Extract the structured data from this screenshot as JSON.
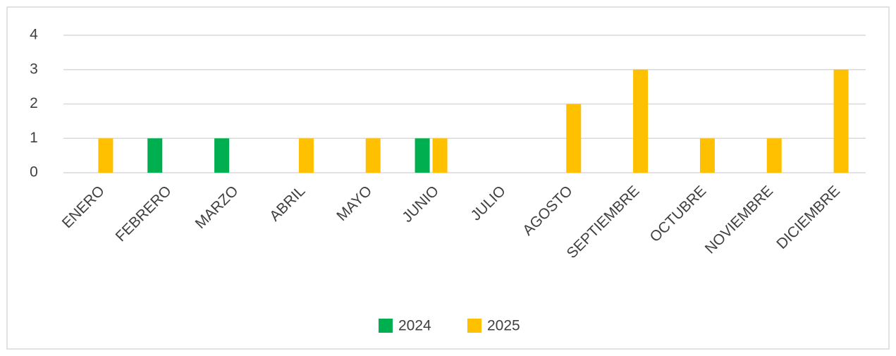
{
  "chart_data": {
    "type": "bar",
    "categories": [
      "ENERO",
      "FEBRERO",
      "MARZO",
      "ABRIL",
      "MAYO",
      "JUNIO",
      "JULIO",
      "AGOSTO",
      "SEPTIEMBRE",
      "OCTUBRE",
      "NOVIEMBRE",
      "DICIEMBRE"
    ],
    "series": [
      {
        "name": "2024",
        "color": "#00b050",
        "values": [
          0,
          1,
          1,
          0,
          0,
          1,
          0,
          0,
          0,
          0,
          0,
          0
        ]
      },
      {
        "name": "2025",
        "color": "#ffc000",
        "values": [
          1,
          0,
          0,
          1,
          1,
          1,
          0,
          2,
          3,
          1,
          1,
          3
        ]
      }
    ],
    "ylim": [
      0,
      4
    ],
    "yticks": [
      0,
      1,
      2,
      3,
      4
    ],
    "grid": true,
    "legend": "bottom"
  }
}
